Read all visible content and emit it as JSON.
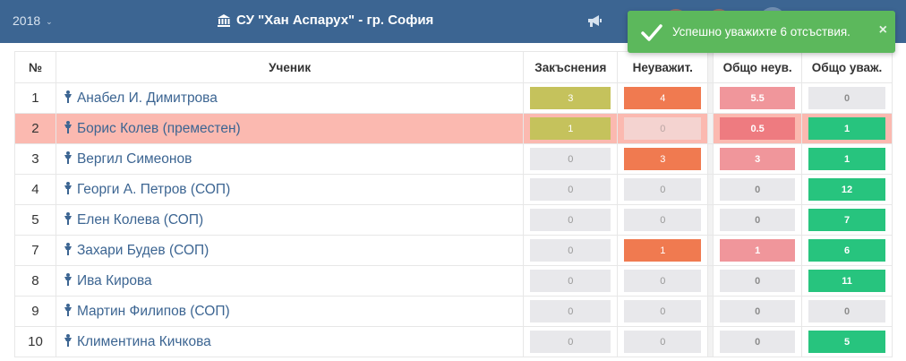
{
  "header": {
    "year": "2018",
    "school": "СУ \"Хан Аспарух\" - гр. София"
  },
  "toast": {
    "message": "Успешно уважихте 6 отсъствия.",
    "close": "×"
  },
  "table": {
    "columns": {
      "num": "№",
      "student": "Ученик",
      "late": "Закъснения",
      "unexcused": "Неуважит.",
      "total_unexcused": "Общо неув.",
      "total_excused": "Общо уваж."
    },
    "rows": [
      {
        "num": "1",
        "name": "Анабел И. Димитрова",
        "late": "3",
        "unexcused": "4",
        "total_unexcused": "5.5",
        "total_excused": "0"
      },
      {
        "num": "2",
        "name": "Борис Колев (преместен)",
        "late": "1",
        "unexcused": "0",
        "total_unexcused": "0.5",
        "total_excused": "1"
      },
      {
        "num": "3",
        "name": "Вергил Симеонов",
        "late": "0",
        "unexcused": "3",
        "total_unexcused": "3",
        "total_excused": "1"
      },
      {
        "num": "4",
        "name": "Георги А. Петров (СОП)",
        "late": "0",
        "unexcused": "0",
        "total_unexcused": "0",
        "total_excused": "12"
      },
      {
        "num": "5",
        "name": "Елен Колева (СОП)",
        "late": "0",
        "unexcused": "0",
        "total_unexcused": "0",
        "total_excused": "7"
      },
      {
        "num": "7",
        "name": "Захари Будев (СОП)",
        "late": "0",
        "unexcused": "1",
        "total_unexcused": "1",
        "total_excused": "6"
      },
      {
        "num": "8",
        "name": "Ива Кирова",
        "late": "0",
        "unexcused": "0",
        "total_unexcused": "0",
        "total_excused": "11"
      },
      {
        "num": "9",
        "name": "Мартин Филипов (СОП)",
        "late": "0",
        "unexcused": "0",
        "total_unexcused": "0",
        "total_excused": "0"
      },
      {
        "num": "10",
        "name": "Климентина Кичкова",
        "late": "0",
        "unexcused": "0",
        "total_unexcused": "0",
        "total_excused": "5"
      }
    ]
  },
  "colors": {
    "navbar": "#3c6592",
    "toast": "#5cb85c",
    "highlight_row": "#fbb9b0",
    "late": "#c5c25c",
    "unexcused": "#f07a50",
    "total_unexcused": "#f0969b",
    "total_excused": "#27c47e",
    "zero": "#e8e8eb"
  },
  "icons": {
    "school": "bank-icon",
    "announcements": "megaphone-icon",
    "student": "student-icon",
    "toast": "check-icon"
  }
}
